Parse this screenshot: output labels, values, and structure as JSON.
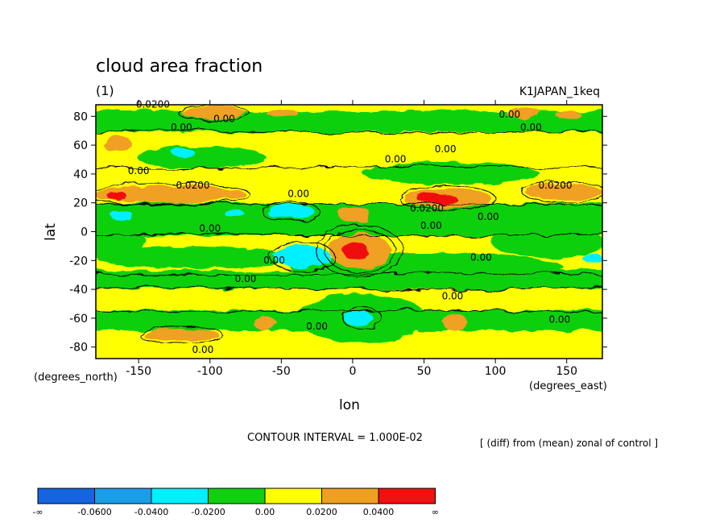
{
  "chart_data": {
    "type": "heatmap",
    "title": "cloud area fraction",
    "subtitle_left": "(1)",
    "subtitle_right": "K1JAPAN_1keq",
    "xlabel": "lon",
    "ylabel": "lat",
    "x_units": "(degrees_east)",
    "y_units": "(degrees_north)",
    "xlim": [
      -180,
      175
    ],
    "ylim": [
      -88,
      88
    ],
    "x_ticks": [
      -150,
      -100,
      -50,
      0,
      50,
      100,
      150
    ],
    "y_ticks": [
      80,
      60,
      40,
      20,
      0,
      -20,
      -40,
      -60,
      -80
    ],
    "contour_interval": "CONTOUR INTERVAL = 1.000E-02",
    "note": "[ (diff) from (mean) zonal of control ]",
    "colorbar": {
      "labels": [
        "-∞",
        "-0.0600",
        "-0.0400",
        "-0.0200",
        "0.00",
        "0.0200",
        "0.0400",
        "∞"
      ],
      "colors": [
        "#1565e0",
        "#1a9de8",
        "#00f0ff",
        "#10d010",
        "#ffff00",
        "#f0a020",
        "#f01010"
      ]
    },
    "contour_labels": [
      {
        "text": "0.0200",
        "lon": -140,
        "lat": 86
      },
      {
        "text": "0.00",
        "lon": -90,
        "lat": 76
      },
      {
        "text": "0.00",
        "lon": -120,
        "lat": 70
      },
      {
        "text": "0.00",
        "lon": -150,
        "lat": 40
      },
      {
        "text": "0.0200",
        "lon": -112,
        "lat": 30
      },
      {
        "text": "0.00",
        "lon": -38,
        "lat": 24
      },
      {
        "text": "0.00",
        "lon": -100,
        "lat": 0
      },
      {
        "text": "0.00",
        "lon": -55,
        "lat": -22
      },
      {
        "text": "0.00",
        "lon": -75,
        "lat": -35
      },
      {
        "text": "0.00",
        "lon": 30,
        "lat": 48
      },
      {
        "text": "0.00",
        "lon": 65,
        "lat": 55
      },
      {
        "text": "0.0200",
        "lon": 52,
        "lat": 14
      },
      {
        "text": "0.00",
        "lon": 95,
        "lat": 8
      },
      {
        "text": "0.00",
        "lon": 55,
        "lat": 2
      },
      {
        "text": "0.00",
        "lon": 90,
        "lat": -20
      },
      {
        "text": "0.00",
        "lon": 70,
        "lat": -47
      },
      {
        "text": "0.00",
        "lon": -25,
        "lat": -68
      },
      {
        "text": "0.00",
        "lon": 145,
        "lat": -63
      },
      {
        "text": "0.0200",
        "lon": 142,
        "lat": 30
      },
      {
        "text": "0.00",
        "lon": 110,
        "lat": 79
      },
      {
        "text": "0.00",
        "lon": 125,
        "lat": 70
      },
      {
        "text": "0.00",
        "lon": -105,
        "lat": -84
      }
    ]
  }
}
